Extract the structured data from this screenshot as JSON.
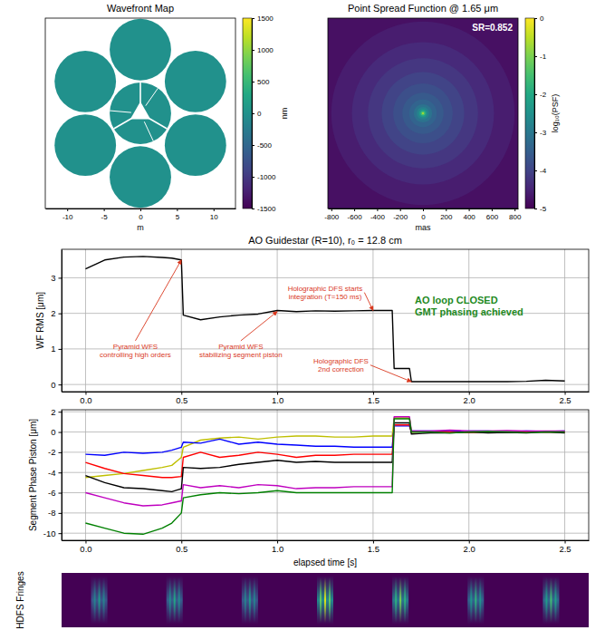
{
  "chart_data": [
    {
      "type": "heatmap",
      "title": "Wavefront Map",
      "x_label": "m",
      "xlim": [
        -13,
        13
      ],
      "ylim": [
        -13,
        13
      ],
      "xticks": [
        -10,
        -5,
        0,
        5,
        10
      ],
      "tick_labels": "x",
      "segments": [
        {
          "x": 0,
          "y": 0,
          "diameter": 8.4,
          "value": 0
        },
        {
          "x": 0,
          "y": 8.7,
          "diameter": 8.4,
          "value": 0
        },
        {
          "x": 7.53,
          "y": 4.35,
          "diameter": 8.4,
          "value": 0
        },
        {
          "x": 7.53,
          "y": -4.35,
          "diameter": 8.4,
          "value": 0
        },
        {
          "x": 0,
          "y": -8.7,
          "diameter": 8.4,
          "value": 0
        },
        {
          "x": -7.53,
          "y": -4.35,
          "diameter": 8.4,
          "value": 0
        },
        {
          "x": -7.53,
          "y": 4.35,
          "diameter": 8.4,
          "value": 0
        }
      ],
      "colorbar": {
        "label": "nm",
        "range": [
          -1500,
          1500
        ],
        "ticks": [
          -1500,
          -1000,
          -500,
          0,
          500,
          1000,
          1500
        ]
      }
    },
    {
      "type": "heatmap",
      "title": "Point Spread Function @ 1.65 μm",
      "annotation": "SR=0.852",
      "x_label": "mas",
      "xlim": [
        -830,
        830
      ],
      "ylim": [
        -830,
        830
      ],
      "xticks": [
        -800,
        -600,
        -400,
        -200,
        0,
        200,
        400,
        600,
        800
      ],
      "tick_labels": "x",
      "radial_profile": {
        "x0": 0,
        "y0": 0,
        "r": [
          8,
          20,
          35,
          55,
          80,
          120,
          180,
          260,
          360,
          480,
          620,
          800,
          1200
        ],
        "values": [
          -0.5,
          -1.5,
          -2.3,
          -2.8,
          -3.1,
          -3.4,
          -3.6,
          -3.8,
          -4.0,
          -4.2,
          -4.4,
          -4.6,
          -4.8
        ]
      },
      "colorbar": {
        "label": "log₁₀(PSF)",
        "range": [
          -5,
          0
        ],
        "ticks": [
          0,
          -1,
          -2,
          -3,
          -4,
          -5
        ]
      }
    },
    {
      "type": "line",
      "title": "AO Guidestar (R=10), r₀ = 12.8 cm",
      "y_label": "WF RMS [μm]",
      "xlim": [
        -0.125,
        2.625
      ],
      "ylim": [
        -0.2,
        3.8
      ],
      "xticks": [
        {
          "value": 0,
          "label": "0.0"
        },
        {
          "value": 0.5,
          "label": "0.5"
        },
        {
          "value": 1,
          "label": "1.0"
        },
        {
          "value": 1.5,
          "label": "1.5"
        },
        {
          "value": 2,
          "label": "2.0"
        },
        {
          "value": 2.5,
          "label": "2.5"
        }
      ],
      "yticks": [
        0,
        1,
        2,
        3
      ],
      "grid": true,
      "color": "#000000",
      "x": [
        0,
        0.1,
        0.2,
        0.3,
        0.4,
        0.45,
        0.5,
        0.51,
        0.6,
        0.7,
        0.8,
        0.9,
        1.0,
        1.1,
        1.2,
        1.3,
        1.4,
        1.5,
        1.6,
        1.61,
        1.69,
        1.7,
        1.8,
        1.9,
        2.0,
        2.1,
        2.2,
        2.3,
        2.4,
        2.5
      ],
      "values": [
        3.25,
        3.5,
        3.58,
        3.6,
        3.57,
        3.55,
        3.5,
        1.95,
        1.82,
        1.9,
        1.95,
        1.98,
        2.08,
        2.05,
        2.07,
        2.06,
        2.07,
        2.08,
        2.08,
        0.45,
        0.45,
        0.08,
        0.08,
        0.08,
        0.08,
        0.08,
        0.08,
        0.09,
        0.12,
        0.1
      ],
      "annotations": [
        {
          "text": "Pyramid WFS\ncontrolling high orders",
          "x": 0.5,
          "y": 3.5
        },
        {
          "text": "Pyramid WFS\nstabilizing segment piston",
          "x": 1.0,
          "y": 2.05
        },
        {
          "text": "Holographic DFS starts\nintegration (T=150 ms)",
          "x": 1.5,
          "y": 2.08
        },
        {
          "text": "Holographic DFS\n2nd correction",
          "x": 1.7,
          "y": 0.08
        }
      ],
      "note": "AO loop CLOSED\nGMT phasing achieved"
    },
    {
      "type": "line",
      "y_label": "Segment Phase Piston [μm]",
      "x_label": "elapsed time [s]",
      "xlim": [
        -0.125,
        2.625
      ],
      "ylim": [
        -10.7,
        2.2
      ],
      "xticks": [
        {
          "value": 0,
          "label": "0.0"
        },
        {
          "value": 0.5,
          "label": "0.5"
        },
        {
          "value": 1,
          "label": "1.0"
        },
        {
          "value": 1.5,
          "label": "1.5"
        },
        {
          "value": 2,
          "label": "2.0"
        },
        {
          "value": 2.5,
          "label": "2.5"
        }
      ],
      "yticks": [
        -10,
        -8,
        -6,
        -4,
        -2,
        0,
        2
      ],
      "grid": true,
      "x": [
        0,
        0.1,
        0.2,
        0.3,
        0.4,
        0.45,
        0.5,
        0.51,
        0.6,
        0.7,
        0.8,
        0.9,
        1.0,
        1.1,
        1.2,
        1.3,
        1.4,
        1.5,
        1.6,
        1.61,
        1.69,
        1.7,
        1.8,
        1.9,
        2.0,
        2.1,
        2.2,
        2.3,
        2.4,
        2.5
      ],
      "series": [
        {
          "color": "#bfbf00",
          "values": [
            -4.5,
            -4.3,
            -4.1,
            -3.8,
            -3.5,
            -3.3,
            -2.5,
            -1.5,
            -0.8,
            -0.6,
            -0.5,
            -0.7,
            -0.5,
            -0.4,
            -0.4,
            -0.5,
            -0.5,
            -0.4,
            -0.4,
            1.4,
            1.4,
            0.0,
            0.05,
            0.0,
            0.0,
            -0.05,
            0.0,
            0.0,
            0.05,
            0.0
          ]
        },
        {
          "color": "#0000ff",
          "values": [
            -2.2,
            -2.3,
            -2.0,
            -2.1,
            -2.0,
            -1.8,
            -1.5,
            -1.0,
            -1.1,
            -0.7,
            -1.2,
            -1.0,
            -1.2,
            -1.3,
            -1.4,
            -1.4,
            -1.5,
            -1.5,
            -1.5,
            0.6,
            0.6,
            0.1,
            0.1,
            0.05,
            0.1,
            0.1,
            0.0,
            0.1,
            0.05,
            0.1
          ]
        },
        {
          "color": "#ff0000",
          "values": [
            -3.0,
            -3.6,
            -4.1,
            -4.3,
            -4.5,
            -4.5,
            -4.4,
            -2.5,
            -2.0,
            -2.5,
            -2.3,
            -2.0,
            -2.2,
            -2.5,
            -2.3,
            -2.3,
            -2.2,
            -2.2,
            -2.2,
            0.7,
            0.7,
            0.0,
            0.05,
            0.0,
            -0.05,
            0.0,
            0.0,
            0.05,
            0.0,
            0.0
          ]
        },
        {
          "color": "#000000",
          "values": [
            -4.3,
            -5.0,
            -5.5,
            -5.6,
            -5.8,
            -5.9,
            -5.6,
            -3.5,
            -3.6,
            -3.5,
            -3.2,
            -3.0,
            -2.8,
            -3.0,
            -2.9,
            -3.0,
            -3.0,
            -3.0,
            -3.0,
            0.9,
            0.9,
            -0.2,
            -0.1,
            -0.1,
            0.0,
            -0.1,
            -0.05,
            -0.1,
            0.0,
            -0.1
          ]
        },
        {
          "color": "#bf00bf",
          "values": [
            -6.0,
            -6.5,
            -7.0,
            -7.3,
            -7.2,
            -7.0,
            -6.8,
            -5.2,
            -5.5,
            -5.3,
            -5.5,
            -5.2,
            -5.3,
            -5.6,
            -5.5,
            -5.5,
            -5.4,
            -5.4,
            -5.4,
            1.5,
            1.5,
            0.1,
            0.1,
            0.2,
            0.1,
            0.1,
            0.15,
            0.1,
            0.1,
            0.1
          ]
        },
        {
          "color": "#008000",
          "values": [
            -9.0,
            -9.5,
            -10.0,
            -10.1,
            -9.5,
            -9.0,
            -8.0,
            -6.5,
            -6.2,
            -6.0,
            -6.1,
            -6.0,
            -5.8,
            -6.0,
            -6.0,
            -6.0,
            -6.0,
            -6.0,
            -6.0,
            1.3,
            1.3,
            0.0,
            0.0,
            -0.1,
            0.0,
            0.05,
            0.0,
            -0.05,
            0.0,
            0.0
          ]
        }
      ]
    },
    {
      "type": "image",
      "y_label": "HDFS Fringes",
      "values": [
        0.55,
        0.6,
        0.55,
        0.95,
        0.8,
        0.65,
        0.7
      ]
    }
  ]
}
